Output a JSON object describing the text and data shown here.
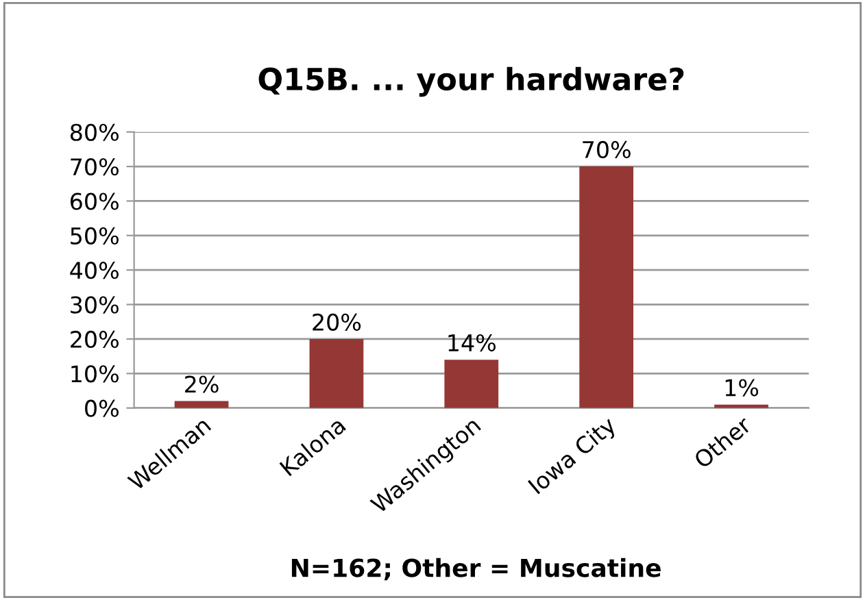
{
  "chart_data": {
    "type": "bar",
    "title": "Q15B. ... your hardware?",
    "categories": [
      "Wellman",
      "Kalona",
      "Washington",
      "Iowa City",
      "Other"
    ],
    "values": [
      2,
      20,
      14,
      70,
      1
    ],
    "color": "#953735",
    "value_labels": [
      "2%",
      "20%",
      "14%",
      "70%",
      "1%"
    ],
    "ylim": [
      0,
      80
    ],
    "yticks": [
      {
        "value": 0,
        "label": "0%"
      },
      {
        "value": 10,
        "label": "10%"
      },
      {
        "value": 20,
        "label": "20%"
      },
      {
        "value": 30,
        "label": "30%"
      },
      {
        "value": 40,
        "label": "40%"
      },
      {
        "value": 50,
        "label": "50%"
      },
      {
        "value": 60,
        "label": "60%"
      },
      {
        "value": 70,
        "label": "70%"
      },
      {
        "value": 80,
        "label": "80%"
      }
    ],
    "grid": "y",
    "annotations": [
      "N=162; Other = Muscatine"
    ]
  }
}
